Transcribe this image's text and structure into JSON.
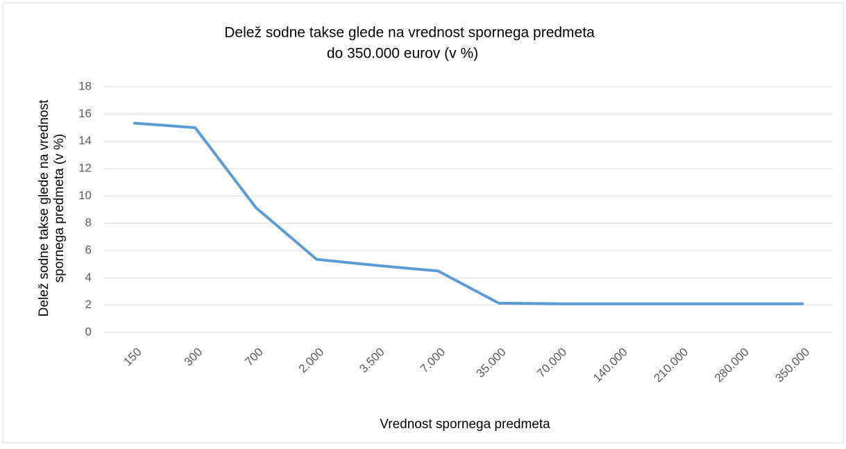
{
  "chart_data": {
    "type": "line",
    "title": [
      "Delež sodne takse glede na vrednost spornega predmeta",
      "do 350.000 eurov (v %)"
    ],
    "x_label": "Vrednost spornega predmeta",
    "y_label": [
      "Delež sodne takse glede na vrednost",
      "spornega predmeta (v %)"
    ],
    "categories": [
      "150",
      "300",
      "700",
      "2.000",
      "3.500",
      "7.000",
      "35.000",
      "70.000",
      "140.000",
      "210.000",
      "280.000",
      "350.000"
    ],
    "values": [
      15.33,
      15.0,
      9.14,
      5.35,
      4.9,
      4.5,
      2.14,
      2.1,
      2.1,
      2.1,
      2.1,
      2.1
    ],
    "color": "#5b9bd5",
    "ylim": [
      0,
      18
    ],
    "yticks": [
      0,
      2,
      4,
      6,
      8,
      10,
      12,
      14,
      16,
      18
    ],
    "grid": true
  }
}
